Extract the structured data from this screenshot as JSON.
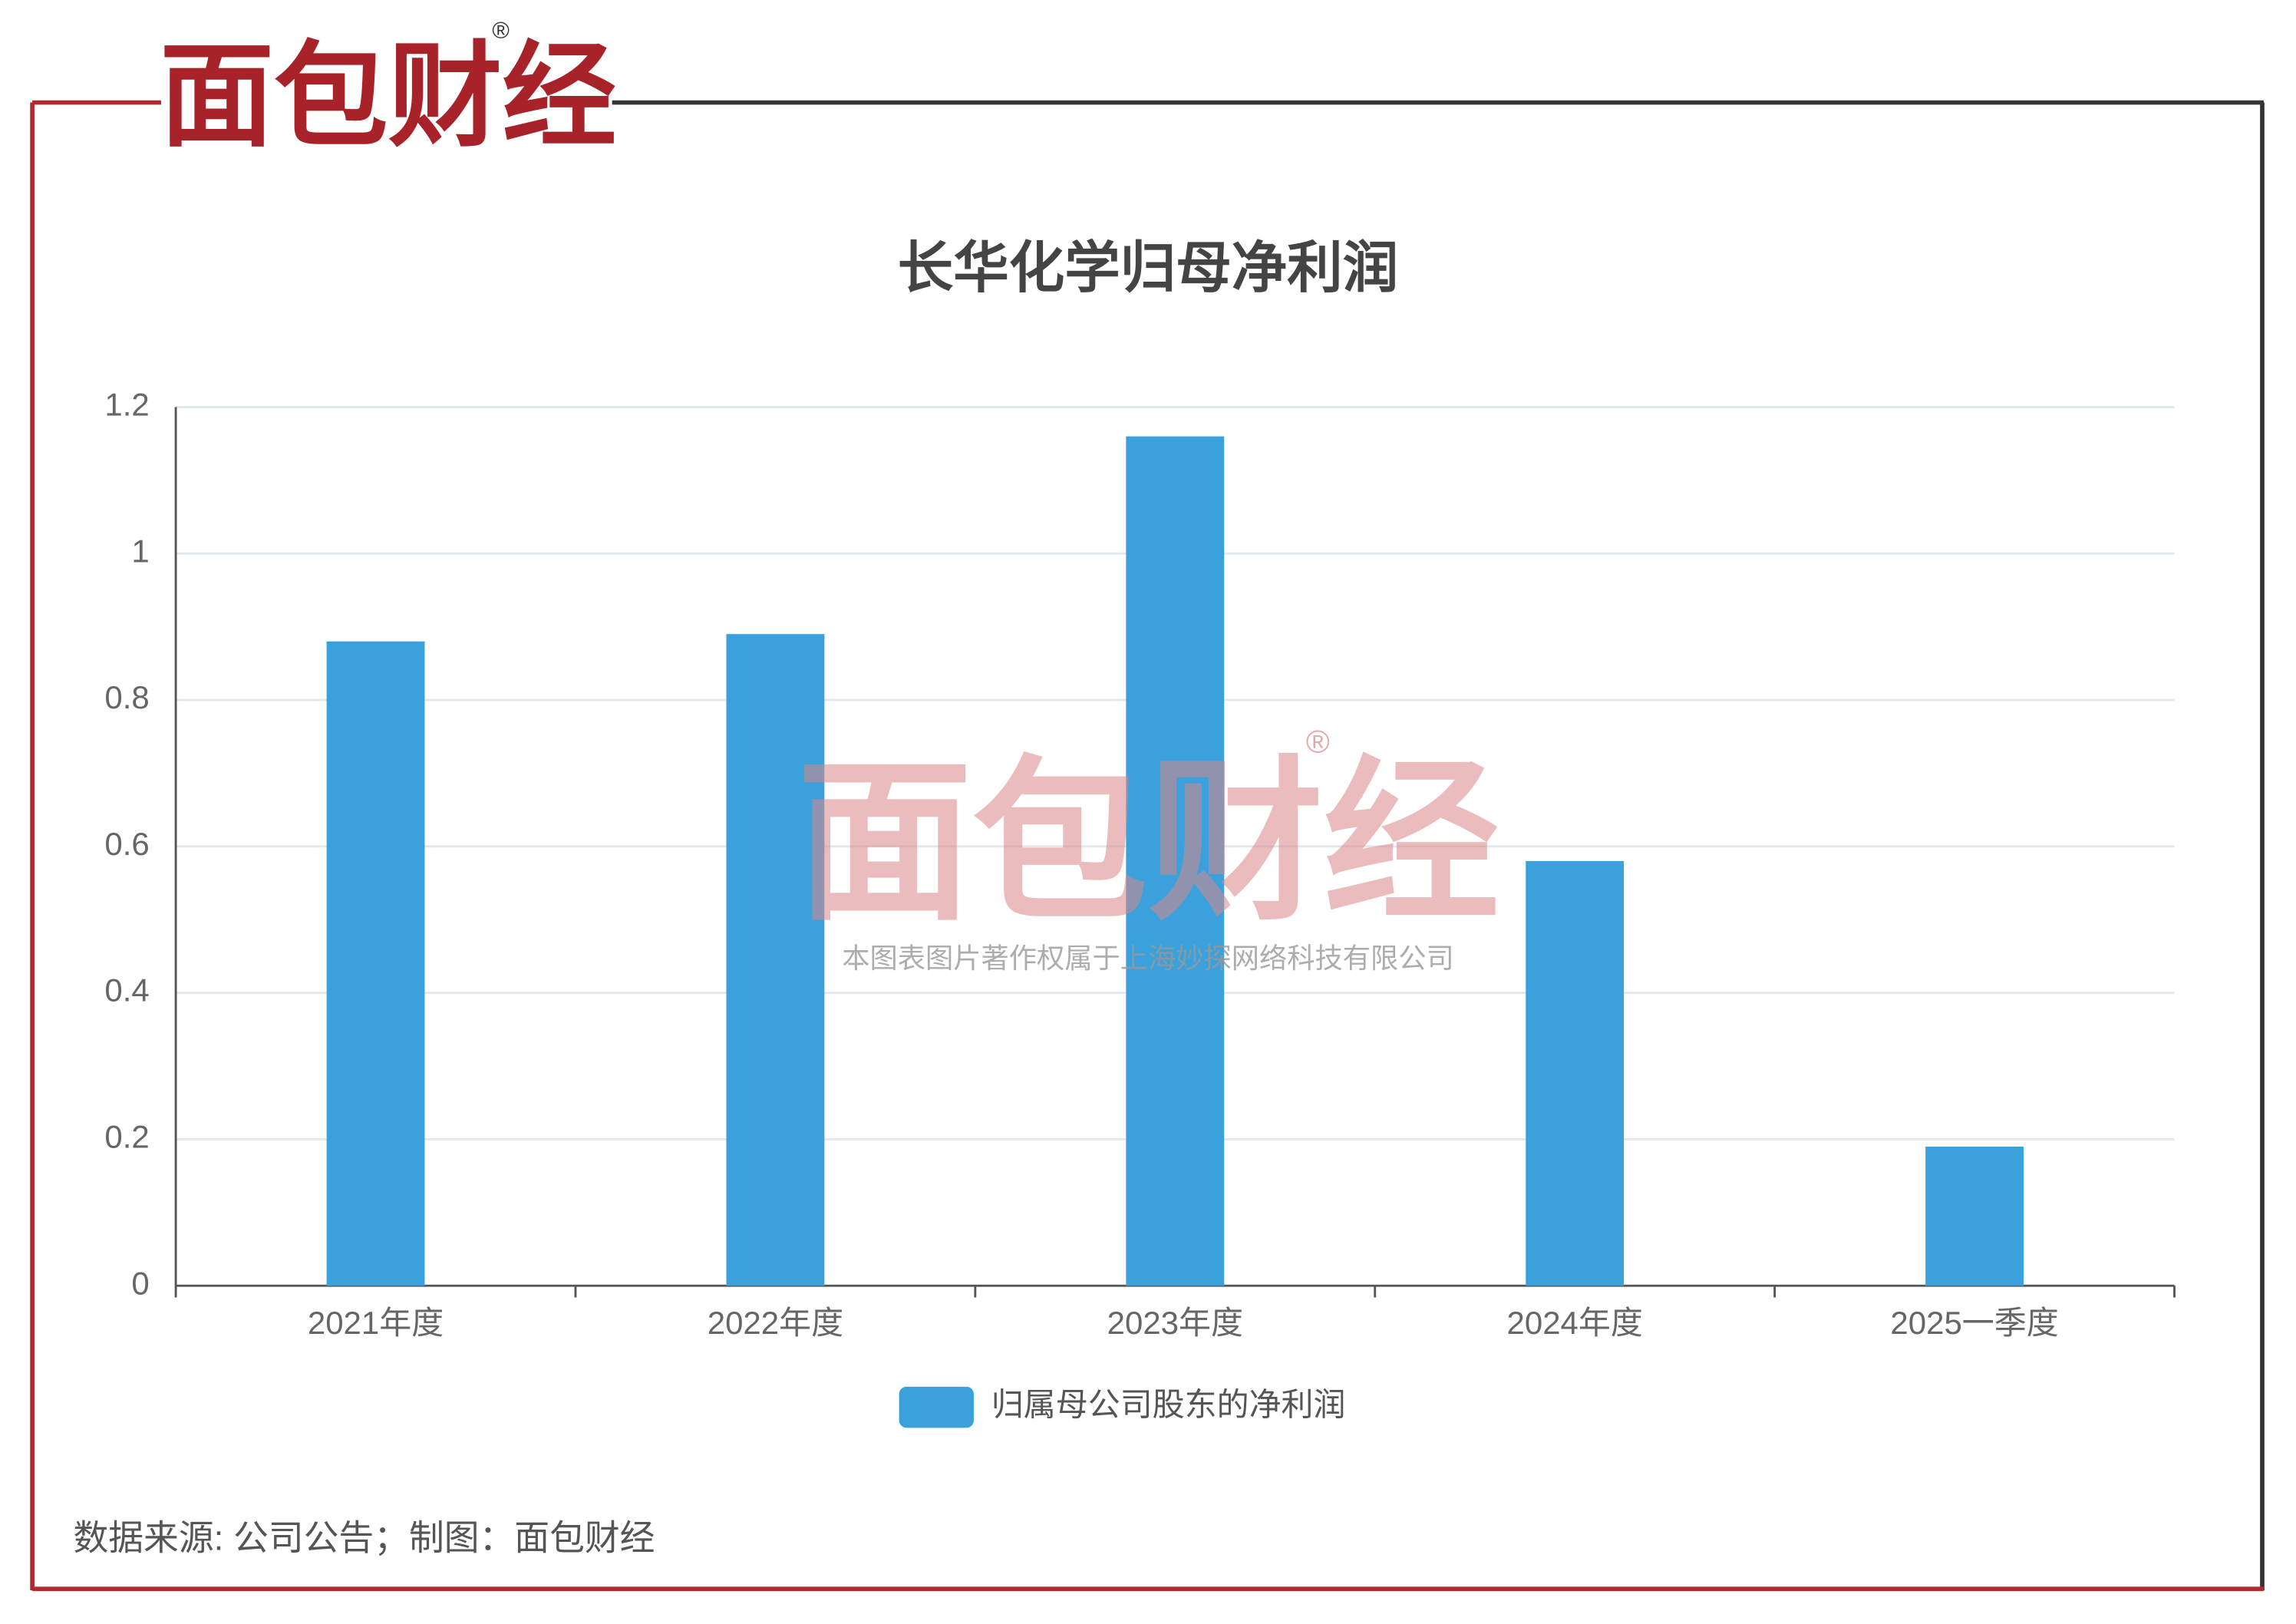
{
  "logo": "面包财经",
  "registered_mark": "®",
  "watermark": {
    "text": "面包财经",
    "mark": "®",
    "copyright": "本图表图片著作权属于上海妙探网络科技有限公司"
  },
  "chart_data": {
    "type": "bar",
    "title": "长华化学归母净利润",
    "categories": [
      "2021年度",
      "2022年度",
      "2023年度",
      "2024年度",
      "2025一季度"
    ],
    "series": [
      {
        "name": "归属母公司股东的净利润",
        "color": "#3aa1dc",
        "values": [
          0.88,
          0.89,
          1.16,
          0.58,
          0.19
        ]
      }
    ],
    "ylim": [
      0,
      1.2
    ],
    "yticks": [
      0,
      0.2,
      0.4,
      0.6,
      0.8,
      1,
      1.2
    ],
    "grid": true,
    "legend": "bottom",
    "source": "数据来源: 公司公告；制图：面包财经"
  }
}
